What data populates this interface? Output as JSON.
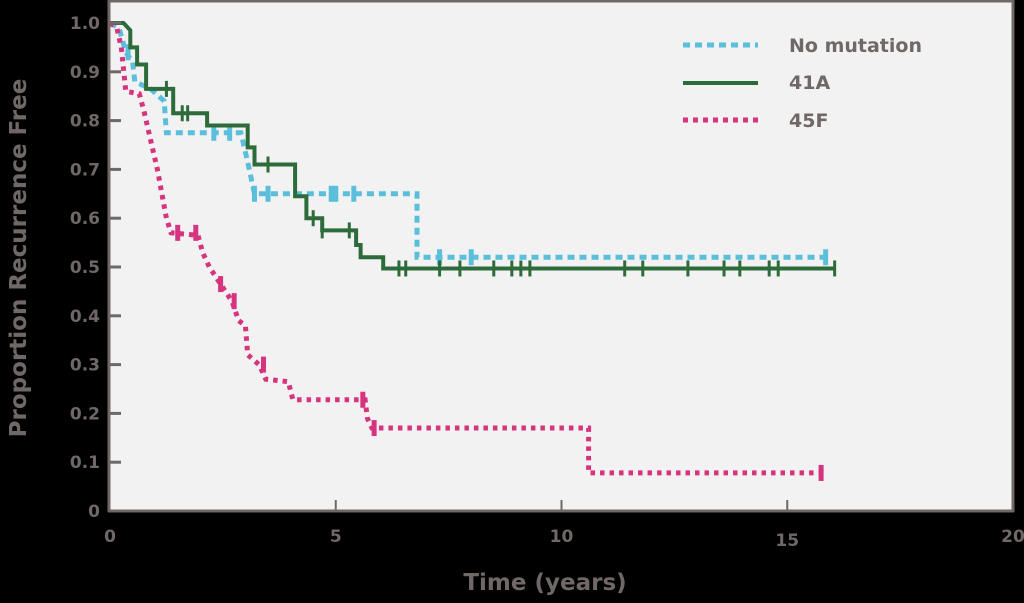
{
  "chart_data": {
    "type": "line",
    "subtype": "kaplan-meier step",
    "title": "",
    "xlabel": "Time (years)",
    "ylabel": "Proportion Recurrence Free",
    "xlim": [
      0,
      20
    ],
    "ylim": [
      0,
      1.0
    ],
    "x_ticks": [
      "0",
      "5",
      "10",
      "15",
      "20"
    ],
    "y_ticks": [
      "0",
      "0.1",
      "0.2",
      "0.3",
      "0.4",
      "0.5",
      "0.6",
      "0.7",
      "0.8",
      "0.9",
      "1.0"
    ],
    "grid": false,
    "legend_position": "upper right",
    "colors": {
      "plot_bg": "#f2f2f2",
      "page_bg": "#000000",
      "axis": "#6f6866",
      "text": "#6f6866"
    },
    "series": [
      {
        "name": "No mutation",
        "color": "#5bbfdc",
        "style": "dashed",
        "points": [
          [
            0,
            1.0
          ],
          [
            0.2,
            0.99
          ],
          [
            0.35,
            0.94
          ],
          [
            0.5,
            0.92
          ],
          [
            0.55,
            0.88
          ],
          [
            0.9,
            0.865
          ],
          [
            1.2,
            0.84
          ],
          [
            1.25,
            0.775
          ],
          [
            2.9,
            0.775
          ],
          [
            2.95,
            0.755
          ],
          [
            3.05,
            0.715
          ],
          [
            3.2,
            0.65
          ],
          [
            6.8,
            0.65
          ],
          [
            6.8,
            0.52
          ],
          [
            15.9,
            0.52
          ]
        ],
        "censored_x": [
          0.4,
          2.3,
          2.65,
          3.2,
          3.5,
          4.9,
          5.0,
          5.4,
          7.3,
          8.0,
          15.85
        ]
      },
      {
        "name": "41A",
        "color": "#2d6b3a",
        "style": "solid",
        "points": [
          [
            0,
            1.0
          ],
          [
            0.3,
            1.0
          ],
          [
            0.45,
            0.985
          ],
          [
            0.45,
            0.95
          ],
          [
            0.6,
            0.95
          ],
          [
            0.6,
            0.915
          ],
          [
            0.8,
            0.915
          ],
          [
            0.8,
            0.865
          ],
          [
            1.4,
            0.865
          ],
          [
            1.4,
            0.815
          ],
          [
            2.15,
            0.815
          ],
          [
            2.15,
            0.79
          ],
          [
            3.05,
            0.79
          ],
          [
            3.05,
            0.745
          ],
          [
            3.2,
            0.745
          ],
          [
            3.2,
            0.71
          ],
          [
            4.1,
            0.71
          ],
          [
            4.1,
            0.645
          ],
          [
            4.35,
            0.645
          ],
          [
            4.35,
            0.6
          ],
          [
            4.7,
            0.6
          ],
          [
            4.7,
            0.575
          ],
          [
            5.45,
            0.575
          ],
          [
            5.45,
            0.545
          ],
          [
            5.55,
            0.545
          ],
          [
            5.55,
            0.52
          ],
          [
            6.05,
            0.52
          ],
          [
            6.05,
            0.497
          ],
          [
            16.05,
            0.497
          ]
        ],
        "censored_x": [
          1.25,
          1.6,
          1.72,
          3.5,
          4.5,
          4.7,
          5.3,
          6.4,
          6.55,
          7.3,
          7.75,
          8.5,
          8.9,
          9.1,
          9.3,
          11.4,
          11.8,
          12.8,
          13.6,
          13.95,
          14.6,
          14.8,
          16.05
        ]
      },
      {
        "name": "45F",
        "color": "#d6347f",
        "style": "dotted",
        "points": [
          [
            0,
            1.0
          ],
          [
            0.15,
            0.99
          ],
          [
            0.25,
            0.95
          ],
          [
            0.35,
            0.86
          ],
          [
            0.65,
            0.855
          ],
          [
            0.75,
            0.82
          ],
          [
            0.9,
            0.76
          ],
          [
            1.05,
            0.7
          ],
          [
            1.15,
            0.65
          ],
          [
            1.25,
            0.6
          ],
          [
            1.35,
            0.57
          ],
          [
            1.95,
            0.565
          ],
          [
            2.05,
            0.53
          ],
          [
            2.2,
            0.5
          ],
          [
            2.45,
            0.465
          ],
          [
            2.7,
            0.43
          ],
          [
            2.85,
            0.39
          ],
          [
            3.0,
            0.38
          ],
          [
            3.05,
            0.32
          ],
          [
            3.3,
            0.3
          ],
          [
            3.45,
            0.27
          ],
          [
            3.95,
            0.265
          ],
          [
            4.05,
            0.228
          ],
          [
            5.65,
            0.228
          ],
          [
            5.7,
            0.19
          ],
          [
            5.8,
            0.17
          ],
          [
            10.6,
            0.17
          ],
          [
            10.6,
            0.078
          ],
          [
            15.75,
            0.078
          ]
        ],
        "censored_x": [
          1.5,
          1.9,
          2.45,
          2.75,
          3.4,
          5.6,
          5.85,
          15.75
        ]
      }
    ],
    "legend": [
      {
        "label": "No mutation",
        "color": "#5bbfdc",
        "style": "dashed"
      },
      {
        "label": "41A",
        "color": "#2d6b3a",
        "style": "solid"
      },
      {
        "label": "45F",
        "color": "#d6347f",
        "style": "dotted"
      }
    ]
  }
}
